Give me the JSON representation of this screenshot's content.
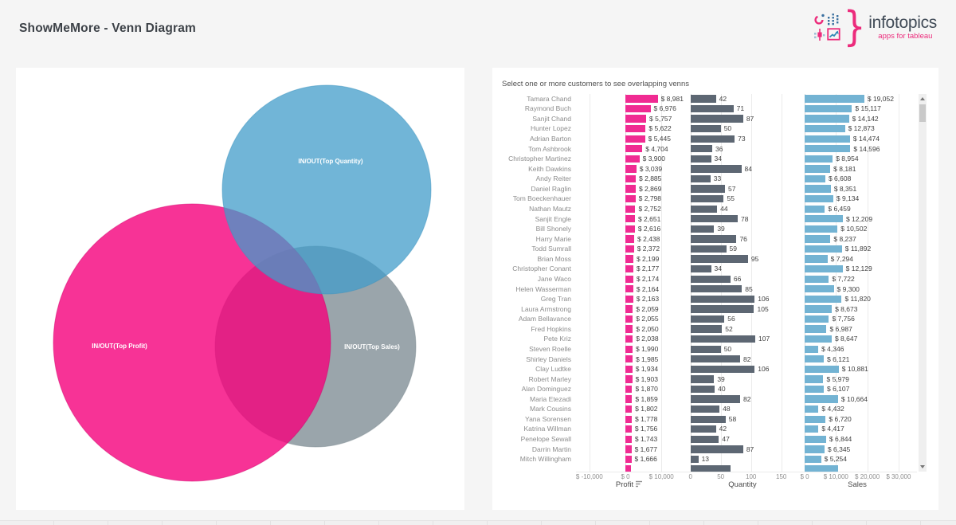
{
  "page": {
    "title": "ShowMeMore - Venn Diagram"
  },
  "logo": {
    "brand": "infotopics",
    "tagline": "apps for tableau",
    "brace": "}",
    "icons": [
      "pie-chart-icon",
      "dot-columns-icon",
      "boxplot-icon",
      "trend-chart-icon"
    ],
    "pink": "#ec2c7c",
    "blue": "#3a70a0"
  },
  "venn": {
    "circles": [
      {
        "id": "top-profit",
        "label": "IN/OUT(Top Profit)",
        "color": "#F5007C"
      },
      {
        "id": "top-quantity",
        "label": "IN/OUT(Top Quantity)",
        "color": "#419CC9"
      },
      {
        "id": "top-sales",
        "label": "IN/OUT(Top Sales)",
        "color": "#88959C"
      }
    ]
  },
  "instruction": "Select one or more customers to see overlapping venns",
  "chart_data": [
    {
      "type": "venn",
      "sets": [
        "IN/OUT(Top Profit)",
        "IN/OUT(Top Quantity)",
        "IN/OUT(Top Sales)"
      ],
      "note": "three overlapping circles, all pairwise and triple overlaps present"
    },
    {
      "type": "bar",
      "orientation": "horizontal",
      "grid": true,
      "categories": [
        "Tamara Chand",
        "Raymond Buch",
        "Sanjit Chand",
        "Hunter Lopez",
        "Adrian Barton",
        "Tom Ashbrook",
        "Christopher Martinez",
        "Keith Dawkins",
        "Andy Reiter",
        "Daniel Raglin",
        "Tom Boeckenhauer",
        "Nathan Mautz",
        "Sanjit Engle",
        "Bill Shonely",
        "Harry Marie",
        "Todd Sumrall",
        "Brian Moss",
        "Christopher Conant",
        "Jane Waco",
        "Helen Wasserman",
        "Greg Tran",
        "Laura Armstrong",
        "Adam Bellavance",
        "Fred Hopkins",
        "Pete Kriz",
        "Steven Roelle",
        "Shirley Daniels",
        "Clay Ludtke",
        "Robert Marley",
        "Alan Dominguez",
        "Maria Etezadi",
        "Mark Cousins",
        "Yana Sorensen",
        "Katrina Willman",
        "Penelope Sewall",
        "Darrin Martin",
        "Mitch Willingham"
      ],
      "series": [
        {
          "name": "Profit",
          "format": "money",
          "color": "#f02b92",
          "sorted": true,
          "ticks": [
            {
              "label": "$ -10,000",
              "value": -10000
            },
            {
              "label": "$ 0",
              "value": 0
            },
            {
              "label": "$ 10,000",
              "value": 10000
            }
          ],
          "values": [
            8981,
            6976,
            5757,
            5622,
            5445,
            4704,
            3900,
            3039,
            2885,
            2869,
            2798,
            2752,
            2651,
            2616,
            2438,
            2372,
            2199,
            2177,
            2174,
            2164,
            2163,
            2059,
            2055,
            2050,
            2038,
            1990,
            1985,
            1934,
            1903,
            1870,
            1859,
            1802,
            1778,
            1756,
            1743,
            1677,
            1666
          ]
        },
        {
          "name": "Quantity",
          "format": "number",
          "color": "#5d6773",
          "sorted": false,
          "ticks": [
            {
              "label": "0",
              "value": 0
            },
            {
              "label": "50",
              "value": 50
            },
            {
              "label": "100",
              "value": 100
            },
            {
              "label": "150",
              "value": 150
            }
          ],
          "values": [
            42,
            71,
            87,
            50,
            73,
            36,
            34,
            84,
            33,
            57,
            55,
            44,
            78,
            39,
            76,
            59,
            95,
            34,
            66,
            85,
            106,
            105,
            56,
            52,
            107,
            50,
            82,
            106,
            39,
            40,
            82,
            48,
            58,
            42,
            47,
            87,
            13
          ]
        },
        {
          "name": "Sales",
          "format": "money",
          "color": "#73b3d3",
          "sorted": false,
          "ticks": [
            {
              "label": "$ 0",
              "value": 0
            },
            {
              "label": "$ 10,000",
              "value": 10000
            },
            {
              "label": "$ 20,000",
              "value": 20000
            },
            {
              "label": "$ 30,000",
              "value": 30000
            }
          ],
          "values": [
            19052,
            15117,
            14142,
            12873,
            14474,
            14596,
            8954,
            8181,
            6608,
            8351,
            9134,
            6459,
            12209,
            10502,
            8237,
            11892,
            7294,
            12129,
            7722,
            9300,
            11820,
            8673,
            7756,
            6987,
            8647,
            4346,
            6121,
            10881,
            5979,
            6107,
            10664,
            4432,
            6720,
            4417,
            6844,
            6345,
            5254
          ]
        }
      ],
      "partial_next_row": {
        "profit": 1550,
        "quantity": 66,
        "sales": 10700
      }
    }
  ],
  "scrollbar": {
    "up_icon": "caret-up",
    "down_icon": "caret-down"
  }
}
